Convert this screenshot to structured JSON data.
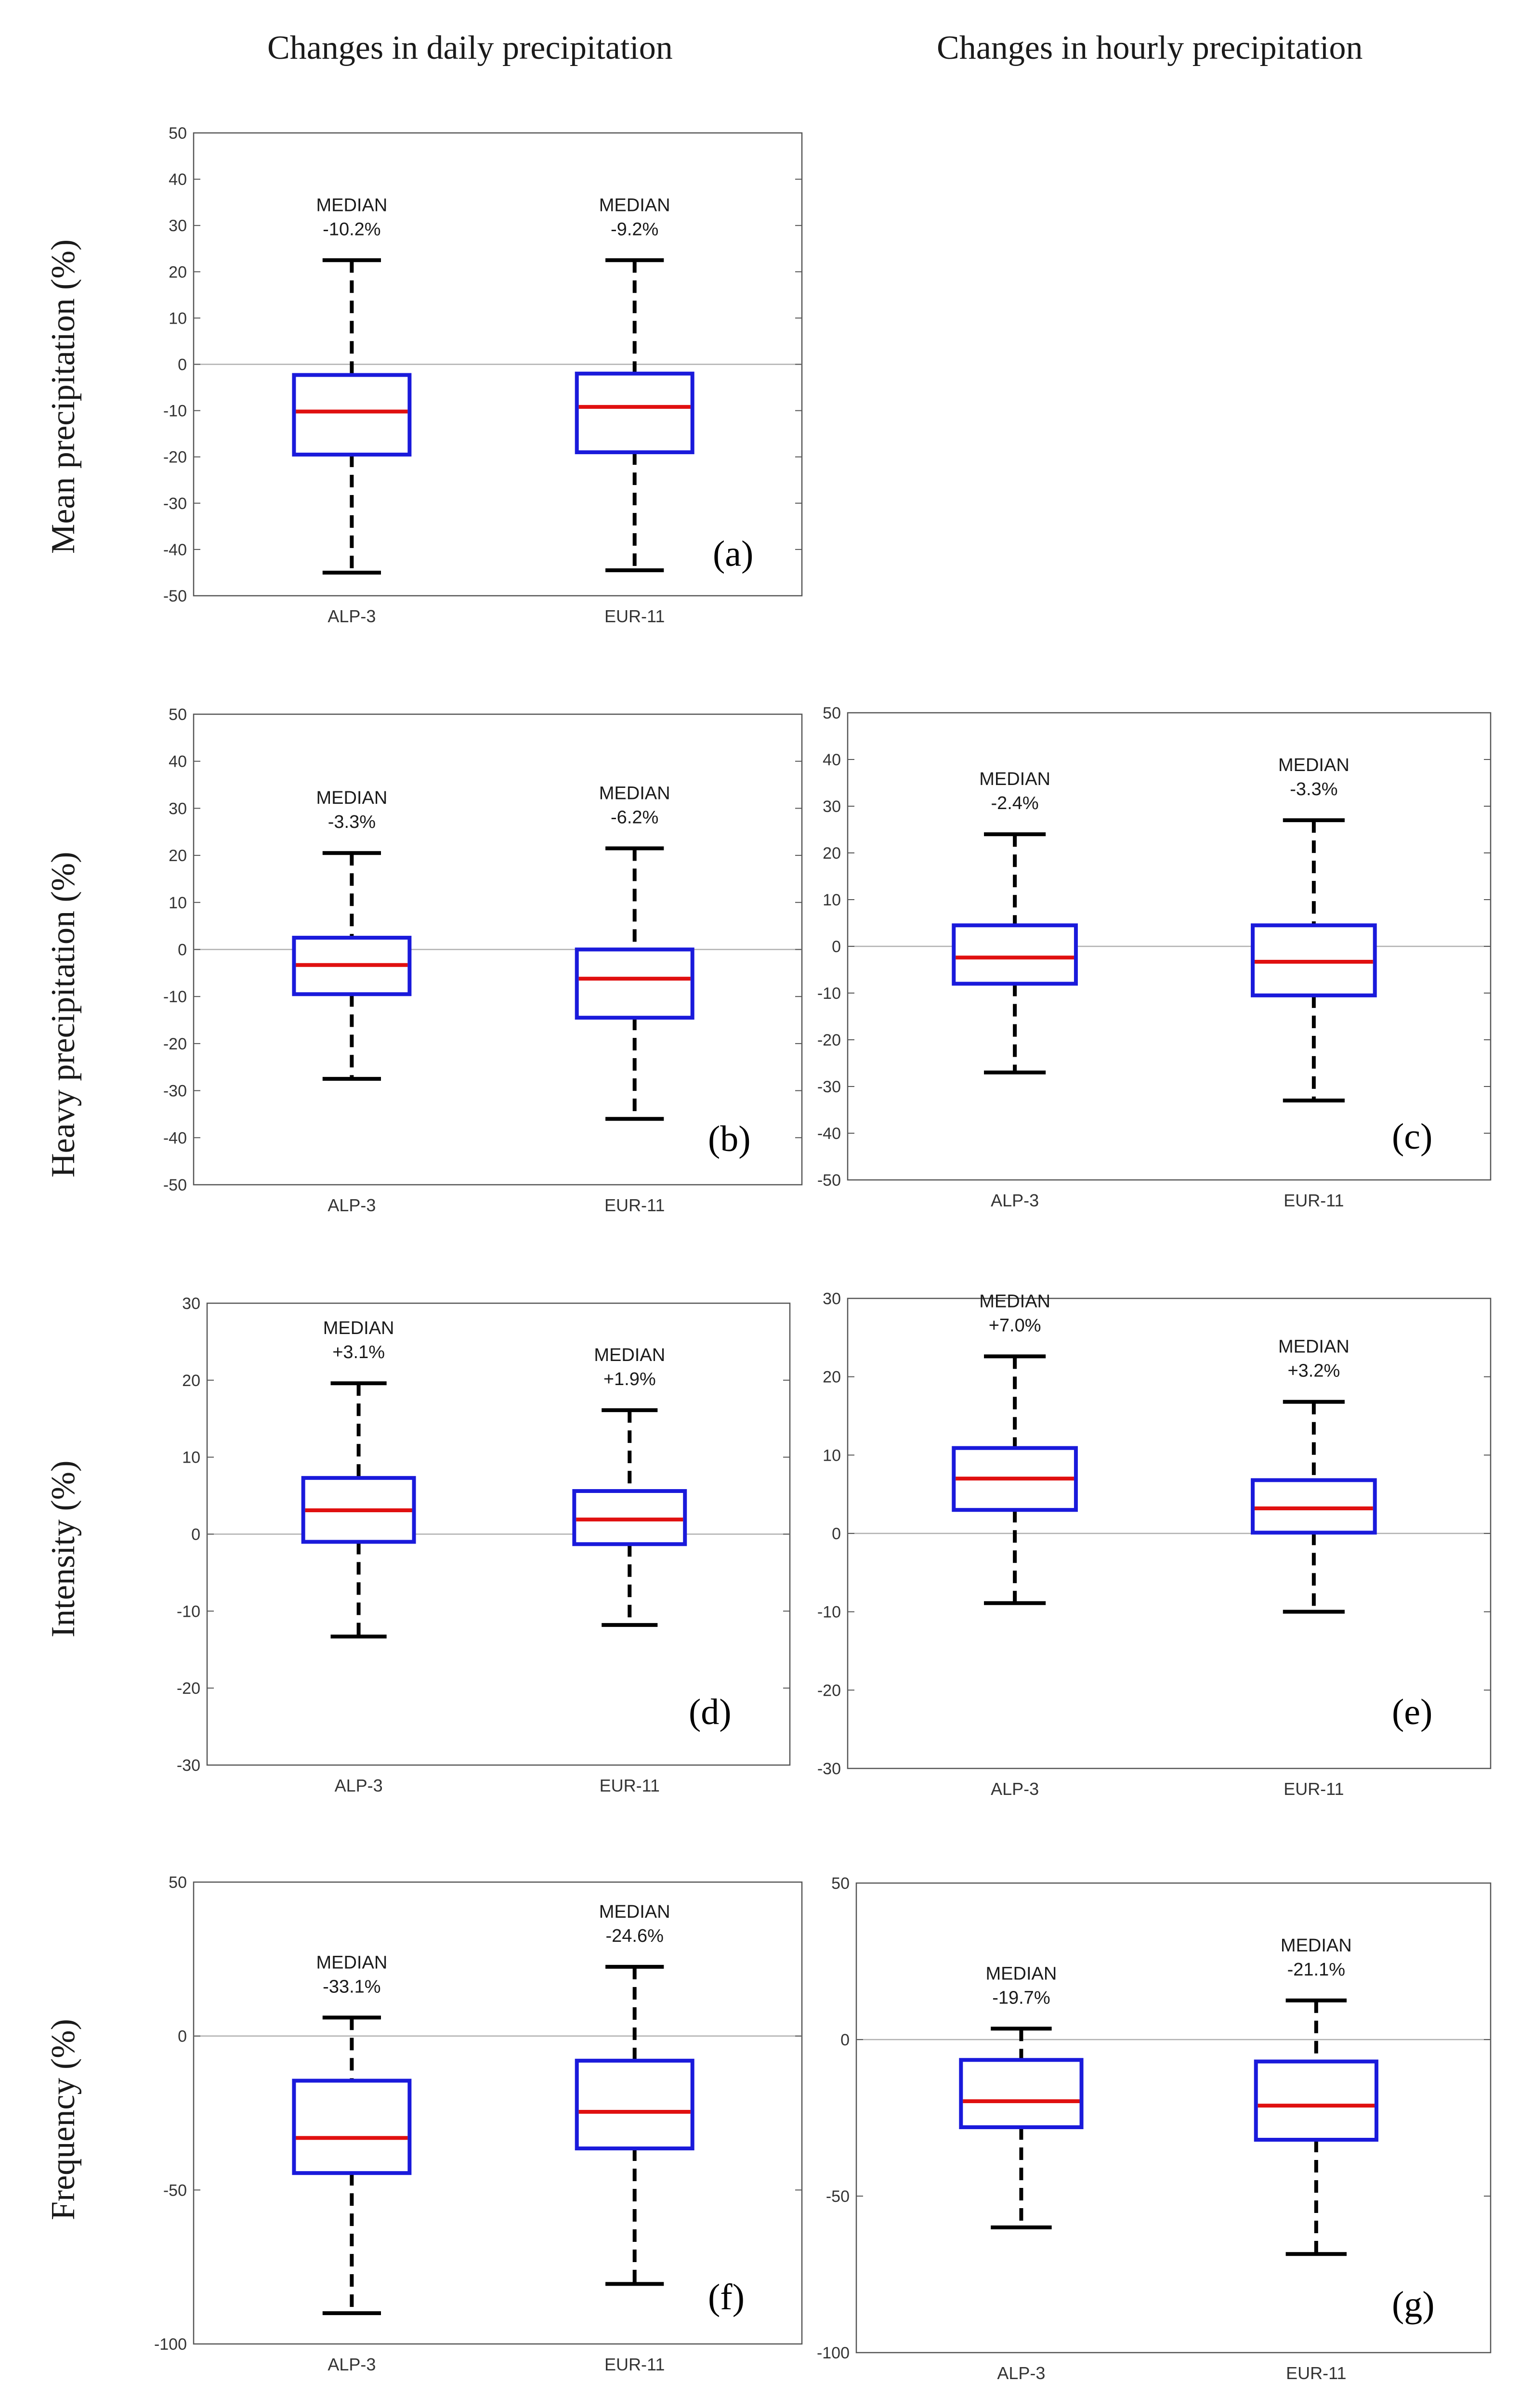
{
  "column_titles": {
    "daily": "Changes in daily precipitation",
    "hourly": "Changes in hourly precipitation"
  },
  "row_labels": [
    "Mean precipitation (%)",
    "Heavy precipitation (%)",
    "Intensity (%)",
    "Frequency (%)"
  ],
  "colors": {
    "box": "#1a1adb",
    "median": "#e01010",
    "whisker": "#000000",
    "zero_line": "#b0b0b0",
    "axes": "#555555"
  },
  "median_word": "MEDIAN",
  "chart_data": [
    {
      "panel": "(a)",
      "type": "box",
      "categories": [
        "ALP-3",
        "EUR-11"
      ],
      "ylim": [
        -50,
        50
      ],
      "yticks": [
        50,
        40,
        30,
        20,
        10,
        0,
        -10,
        -20,
        -30,
        -40,
        -50
      ],
      "ytick_labels": [
        "50",
        "40",
        "30",
        "20",
        "10",
        "0",
        "-10",
        "-20",
        "-30",
        "-40",
        "-50"
      ],
      "boxes": [
        {
          "median": -10.2,
          "q1": -19.5,
          "q3": -2.3,
          "whisker_low": -45.0,
          "whisker_high": 22.5,
          "label": "-10.2%"
        },
        {
          "median": -9.2,
          "q1": -19.0,
          "q3": -2.0,
          "whisker_low": -44.5,
          "whisker_high": 22.5,
          "label": "-9.2%"
        }
      ]
    },
    {
      "panel": "(b)",
      "type": "box",
      "categories": [
        "ALP-3",
        "EUR-11"
      ],
      "ylim": [
        -50,
        50
      ],
      "yticks": [
        50,
        40,
        30,
        20,
        10,
        0,
        -10,
        -20,
        -30,
        -40,
        -50
      ],
      "ytick_labels": [
        "50",
        "40",
        "30",
        "20",
        "10",
        "0",
        "-10",
        "-20",
        "-30",
        "-40",
        "-50"
      ],
      "boxes": [
        {
          "median": -3.3,
          "q1": -9.5,
          "q3": 2.5,
          "whisker_low": -27.5,
          "whisker_high": 20.5,
          "label": "-3.3%"
        },
        {
          "median": -6.2,
          "q1": -14.5,
          "q3": 0.0,
          "whisker_low": -36.0,
          "whisker_high": 21.5,
          "label": "-6.2%"
        }
      ]
    },
    {
      "panel": "(c)",
      "type": "box",
      "categories": [
        "ALP-3",
        "EUR-11"
      ],
      "ylim": [
        -50,
        50
      ],
      "yticks": [
        50,
        40,
        30,
        20,
        10,
        0,
        -10,
        -20,
        -30,
        -40,
        -50
      ],
      "ytick_labels": [
        "50",
        "40",
        "30",
        "20",
        "10",
        "0",
        "-10",
        "-20",
        "-30",
        "-40",
        "-50"
      ],
      "boxes": [
        {
          "median": -2.4,
          "q1": -8.0,
          "q3": 4.5,
          "whisker_low": -27.0,
          "whisker_high": 24.0,
          "label": "-2.4%"
        },
        {
          "median": -3.3,
          "q1": -10.5,
          "q3": 4.5,
          "whisker_low": -33.0,
          "whisker_high": 27.0,
          "label": "-3.3%"
        }
      ]
    },
    {
      "panel": "(d)",
      "type": "box",
      "categories": [
        "ALP-3",
        "EUR-11"
      ],
      "ylim": [
        -30,
        30
      ],
      "yticks": [
        30,
        20,
        10,
        0,
        -10,
        -20,
        -30
      ],
      "ytick_labels": [
        "30",
        "20",
        "10",
        "0",
        "-10",
        "-20",
        "-30"
      ],
      "boxes": [
        {
          "median": 3.1,
          "q1": -1.0,
          "q3": 7.3,
          "whisker_low": -13.3,
          "whisker_high": 19.6,
          "label": "+3.1%"
        },
        {
          "median": 1.9,
          "q1": -1.3,
          "q3": 5.6,
          "whisker_low": -11.8,
          "whisker_high": 16.1,
          "label": "+1.9%"
        }
      ]
    },
    {
      "panel": "(e)",
      "type": "box",
      "categories": [
        "ALP-3",
        "EUR-11"
      ],
      "ylim": [
        -30,
        30
      ],
      "yticks": [
        30,
        20,
        10,
        0,
        -10,
        -20,
        -30
      ],
      "ytick_labels": [
        "30",
        "20",
        "10",
        "0",
        "-10",
        "-20",
        "-30"
      ],
      "boxes": [
        {
          "median": 7.0,
          "q1": 3.0,
          "q3": 10.9,
          "whisker_low": -8.9,
          "whisker_high": 22.6,
          "label": "+7.0%"
        },
        {
          "median": 3.2,
          "q1": 0.1,
          "q3": 6.8,
          "whisker_low": -10.0,
          "whisker_high": 16.8,
          "label": "+3.2%"
        }
      ]
    },
    {
      "panel": "(f)",
      "type": "box",
      "categories": [
        "ALP-3",
        "EUR-11"
      ],
      "ylim": [
        -100,
        50
      ],
      "yticks": [
        50,
        0,
        -50,
        -100
      ],
      "ytick_labels": [
        "50",
        "0",
        "-50",
        "-100"
      ],
      "boxes": [
        {
          "median": -33.1,
          "q1": -44.5,
          "q3": -14.5,
          "whisker_low": -90.0,
          "whisker_high": 6.0,
          "label": "-33.1%"
        },
        {
          "median": -24.6,
          "q1": -36.5,
          "q3": -8.0,
          "whisker_low": -80.5,
          "whisker_high": 22.5,
          "label": "-24.6%"
        }
      ]
    },
    {
      "panel": "(g)",
      "type": "box",
      "categories": [
        "ALP-3",
        "EUR-11"
      ],
      "ylim": [
        -100,
        50
      ],
      "yticks": [
        50,
        0,
        -50,
        -100
      ],
      "ytick_labels": [
        "50",
        "0",
        "-50",
        "-100"
      ],
      "boxes": [
        {
          "median": -19.7,
          "q1": -28.0,
          "q3": -6.5,
          "whisker_low": -60.0,
          "whisker_high": 3.5,
          "label": "-19.7%"
        },
        {
          "median": -21.1,
          "q1": -32.0,
          "q3": -7.0,
          "whisker_low": -68.5,
          "whisker_high": 12.5,
          "label": "-21.1%"
        }
      ]
    }
  ]
}
